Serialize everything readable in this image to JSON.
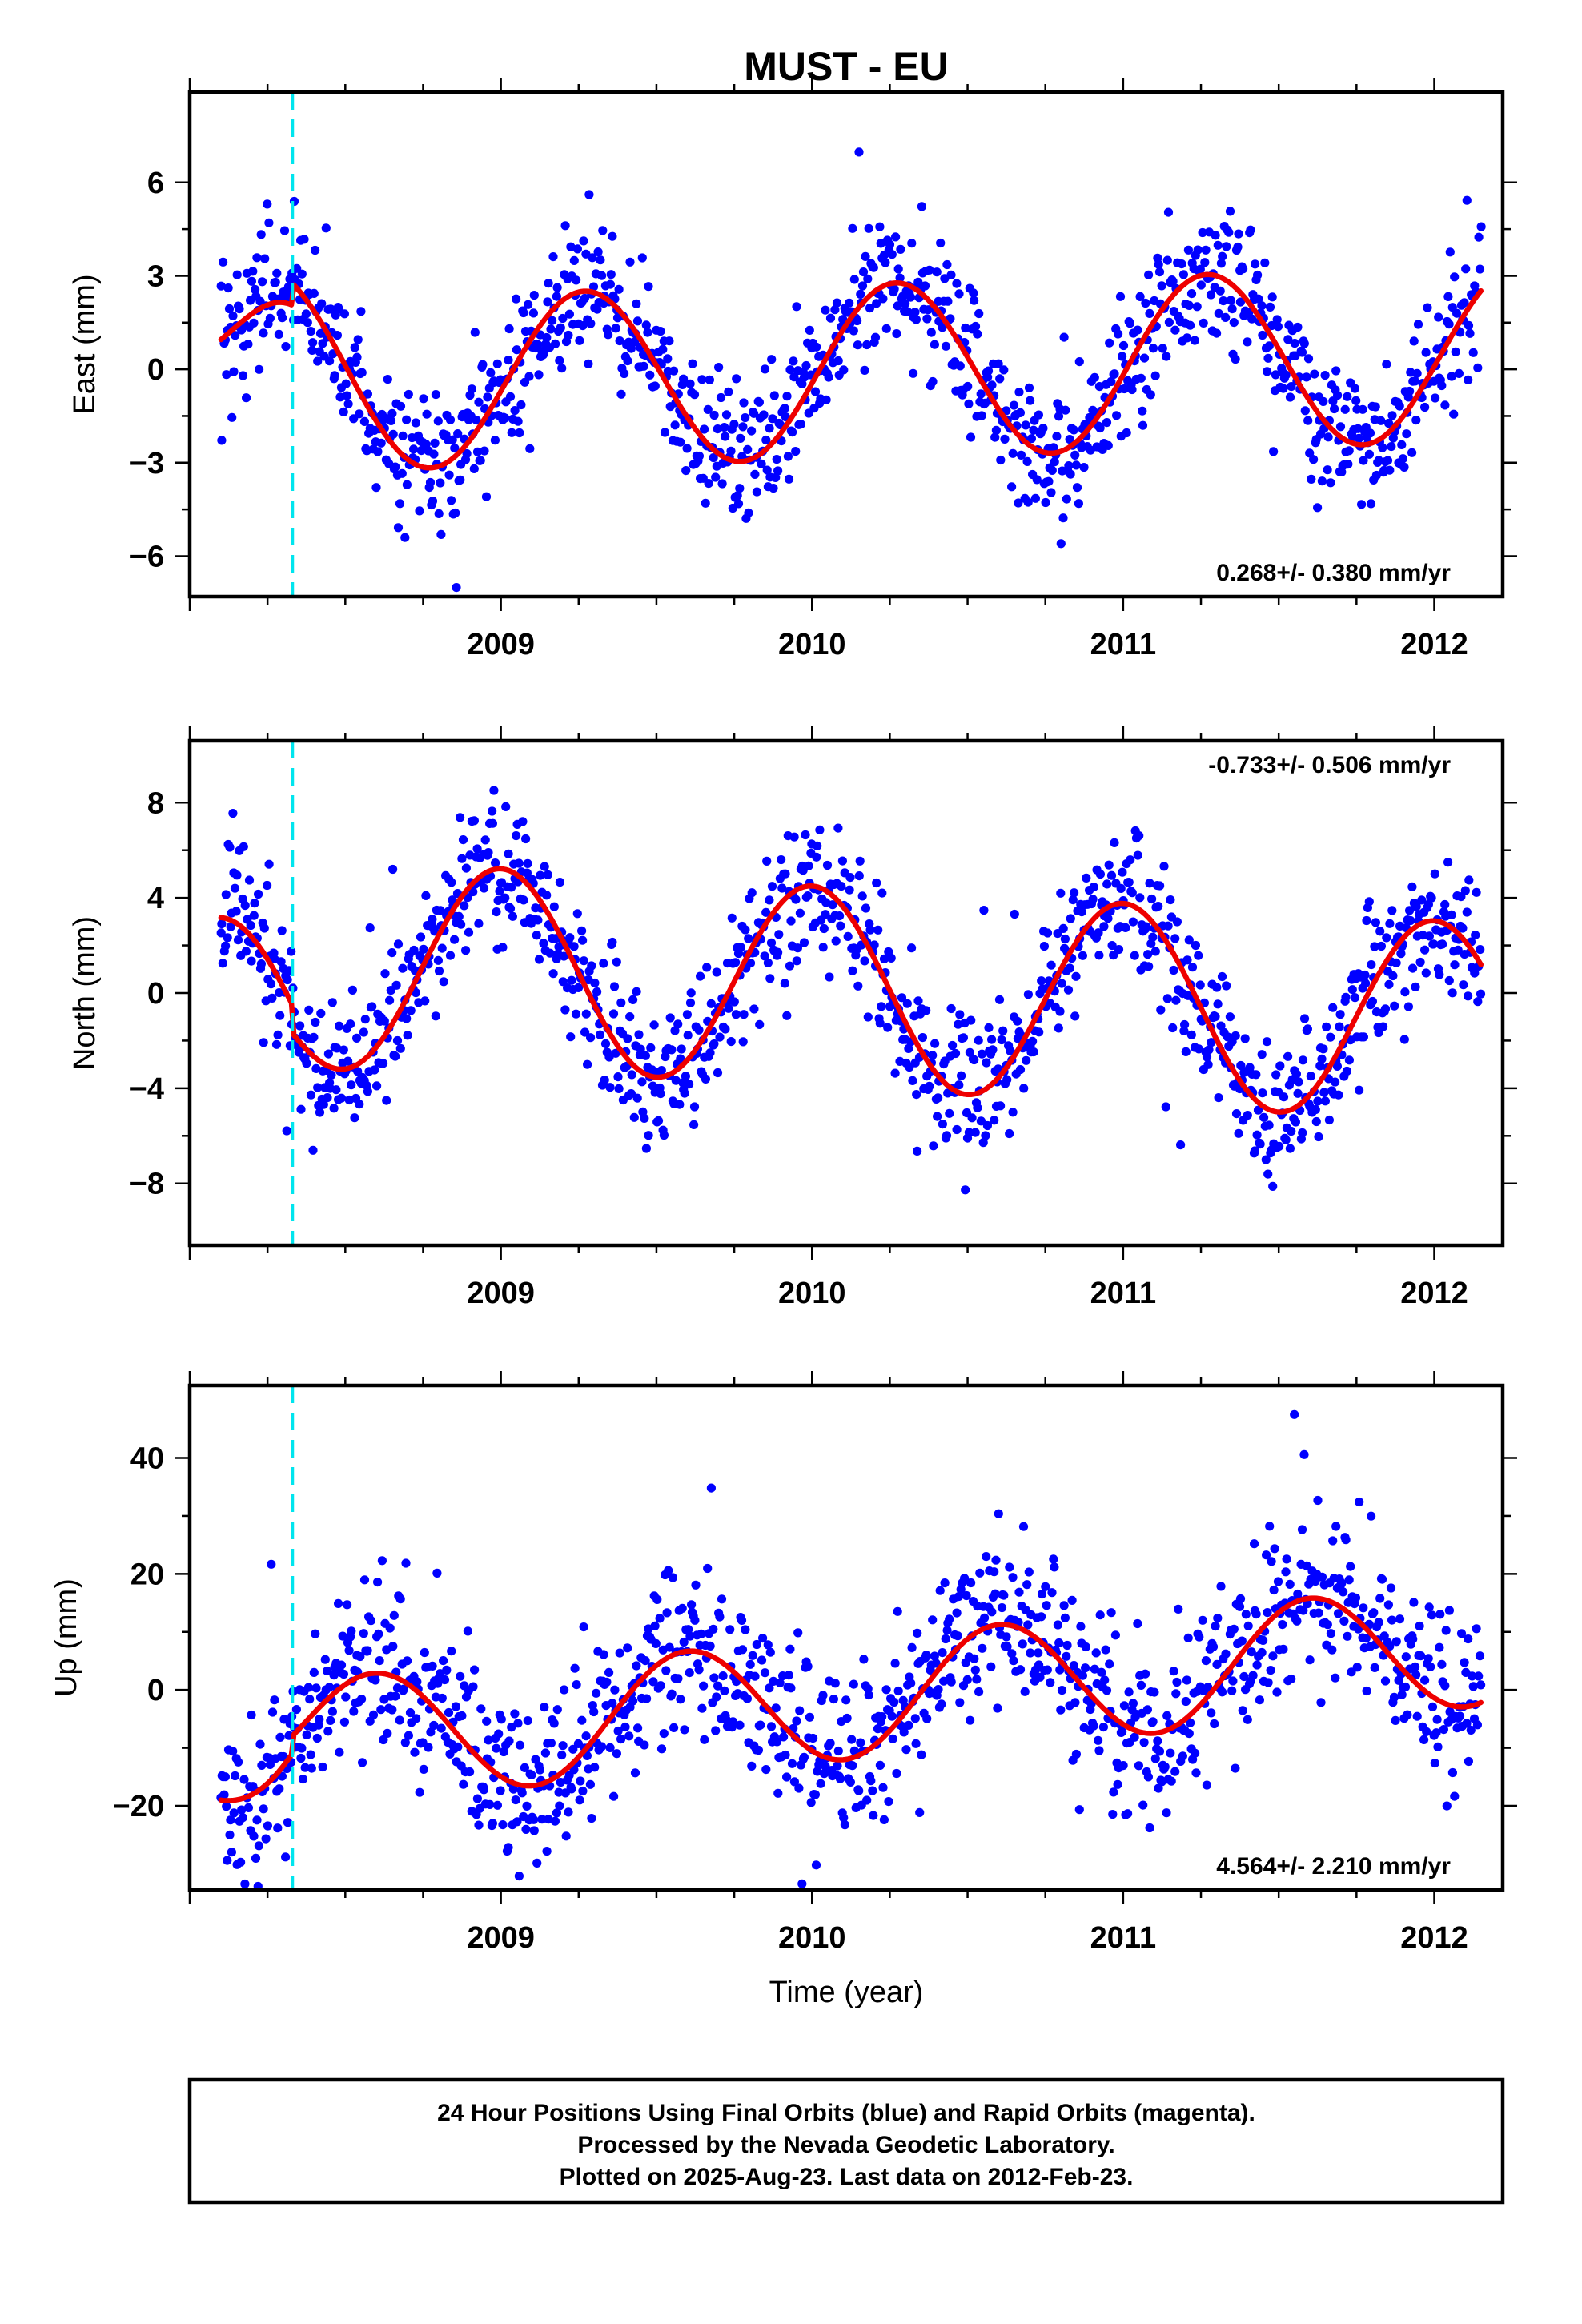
{
  "chart_data": {
    "type": "scatter",
    "title": "MUST - EU",
    "xlabel": "Time (year)",
    "x_tick_labels": [
      "2009",
      "2010",
      "2011",
      "2012"
    ],
    "colors": {
      "observations": "#0000ff",
      "model": "#ee0000",
      "event_marker": "#00e5ee"
    },
    "event_marker_x": 2008.33,
    "panels": [
      {
        "name": "east",
        "ylabel": "East (mm)",
        "ylim": [
          -7.3,
          8.9
        ],
        "xlim": [
          2008.0,
          2012.22
        ],
        "y_ticks": [
          -6,
          -3,
          0,
          3,
          6
        ],
        "y_tick_labels": [
          "−6",
          "−3",
          "0",
          "3",
          "6"
        ],
        "rate_text": "0.268+/- 0.380 mm/yr",
        "rate_position": "bottom-right",
        "model": {
          "baseline": -0.1,
          "trend_per_yr": 0.268,
          "amplitude": 2.8,
          "phase_offset_yr": 0.27,
          "t0": 2010.0,
          "pre_event_level": 1.25,
          "offset_at_event": 0.7,
          "recovery_yr": 0.18
        },
        "noise_sd": 1.1,
        "n_points": 1150
      },
      {
        "name": "north",
        "ylabel": "North (mm)",
        "ylim": [
          -10.6,
          10.6
        ],
        "xlim": [
          2008.0,
          2012.22
        ],
        "y_ticks": [
          -8,
          -4,
          0,
          4,
          8
        ],
        "y_tick_labels": [
          "−8",
          "−4",
          "0",
          "4",
          "8"
        ],
        "rate_text": "-0.733+/- 0.506 mm/yr",
        "rate_position": "top-right",
        "model": {
          "baseline": 0.3,
          "trend_per_yr": -0.733,
          "amplitude": 4.2,
          "phase_offset_yr": 0.0,
          "t0": 2010.0,
          "pre_event_level": 0.5,
          "offset_at_event": -1.2,
          "recovery_yr": 0.15
        },
        "noise_sd": 1.5,
        "n_points": 1150
      },
      {
        "name": "up",
        "ylabel": "Up (mm)",
        "ylim": [
          -34.5,
          52.5
        ],
        "xlim": [
          2008.0,
          2012.22
        ],
        "y_ticks": [
          -20,
          0,
          20,
          40
        ],
        "y_tick_labels": [
          "−20",
          "0",
          "20",
          "40"
        ],
        "rate_text": "4.564+/- 2.210 mm/yr",
        "rate_position": "bottom-right",
        "model": {
          "baseline": -2.0,
          "trend_per_yr": 4.564,
          "amplitude": 10.5,
          "phase_offset_yr": 0.6,
          "t0": 2010.0,
          "pre_event_level": -16,
          "offset_at_event": 3.0,
          "recovery_yr": 0.2
        },
        "noise_sd": 7.5,
        "n_points": 1150
      }
    ]
  },
  "footer": {
    "line1": "24 Hour Positions Using Final Orbits (blue) and Rapid Orbits (magenta).",
    "line2": "Processed by the Nevada Geodetic Laboratory.",
    "line3": "Plotted on 2025-Aug-23. Last data on 2012-Feb-23."
  }
}
